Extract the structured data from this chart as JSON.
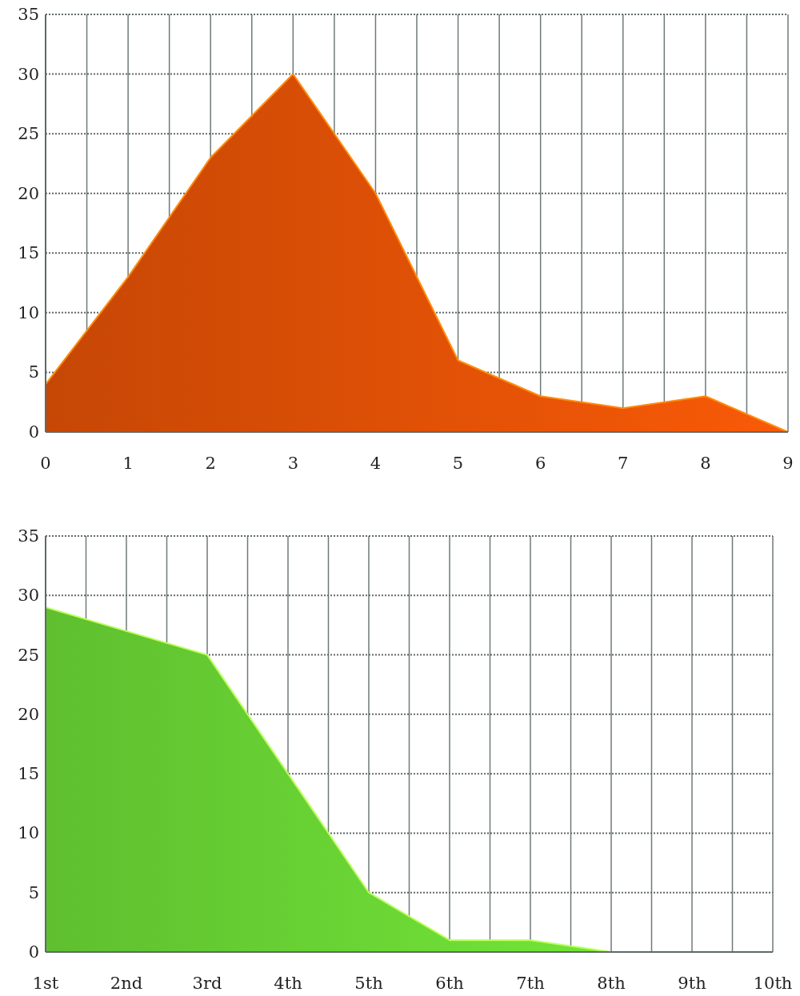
{
  "chart_data": [
    {
      "type": "area",
      "x": [
        0,
        1,
        2,
        3,
        4,
        5,
        6,
        7,
        8,
        9
      ],
      "values": [
        4,
        13,
        23,
        30,
        20,
        6,
        3,
        2,
        3,
        0
      ],
      "color": "#dc4f06",
      "xlim": [
        0,
        9
      ],
      "xticks": [
        0,
        {
          "value": 0.5,
          "label": null
        },
        1,
        {
          "value": 1.5,
          "label": null
        },
        2,
        {
          "value": 2.5,
          "label": null
        },
        3,
        {
          "value": 3.5,
          "label": null
        },
        4,
        {
          "value": 4.5,
          "label": null
        },
        5,
        {
          "value": 5.5,
          "label": null
        },
        6,
        {
          "value": 6.5,
          "label": null
        },
        7,
        {
          "value": 7.5,
          "label": null
        },
        8,
        {
          "value": 8.5,
          "label": null
        },
        9
      ],
      "ylim": [
        0,
        35
      ],
      "yticks": [
        0,
        5,
        10,
        15,
        20,
        25,
        30,
        35
      ],
      "grid": true
    },
    {
      "type": "area",
      "categories": [
        "1st",
        "2nd",
        "3rd",
        "4th",
        "5th",
        "6th",
        "7th",
        "8th",
        "9th",
        "10th"
      ],
      "values": [
        29,
        27,
        25,
        15,
        5,
        1,
        1,
        0,
        0,
        0
      ],
      "color": "#6ad534",
      "ylim": [
        0,
        35
      ],
      "yticks": [
        0,
        5,
        10,
        15,
        20,
        25,
        30,
        35
      ],
      "grid": true
    }
  ]
}
